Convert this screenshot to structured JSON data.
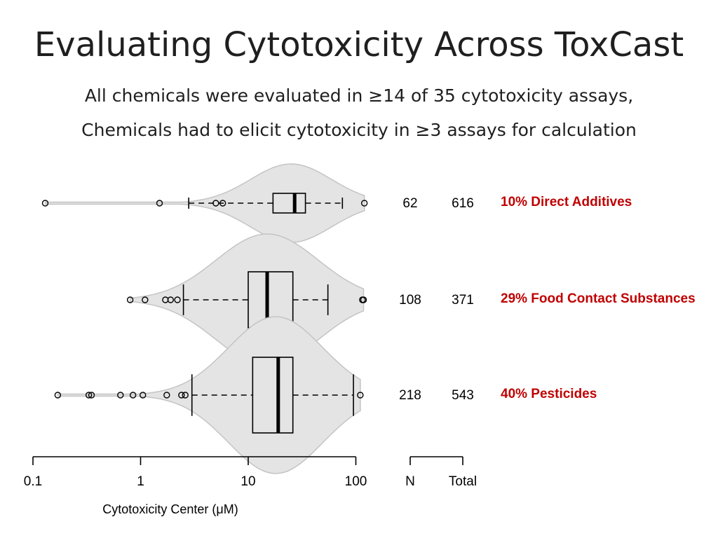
{
  "title": "Evaluating Cytotoxicity Across ToxCast",
  "subtitle_line1": "All chemicals were evaluated in ≥14 of 35 cytotoxicity assays,",
  "subtitle_line2": "Chemicals had to elicit cytotoxicity in ≥3 assays for calculation",
  "accent_color": "#c00000",
  "chart_data": {
    "type": "violin-box",
    "xlabel": "Cytotoxicity Center (μM)",
    "xscale": "log",
    "xlim": [
      0.1,
      100
    ],
    "xticks": [
      0.1,
      1,
      10,
      100
    ],
    "xtick_labels": [
      "0.1",
      "1",
      "10",
      "100"
    ],
    "count_columns": [
      "N",
      "Total"
    ],
    "groups": [
      {
        "label": "10% Direct Additives",
        "N": 62,
        "Total": 616,
        "whisker_low": 2.8,
        "q1": 17,
        "median": 27,
        "q3": 34,
        "whisker_high": 75,
        "outliers": [
          0.13,
          1.5,
          5.0,
          5.8,
          120
        ],
        "violin_center": 25
      },
      {
        "label": "29% Food Contact Substances",
        "N": 108,
        "Total": 371,
        "whisker_low": 2.5,
        "q1": 10,
        "median": 15,
        "q3": 26,
        "whisker_high": 55,
        "outliers": [
          0.8,
          1.1,
          1.7,
          1.9,
          2.2,
          115,
          118
        ],
        "violin_center": 15
      },
      {
        "label": "40% Pesticides",
        "N": 218,
        "Total": 543,
        "whisker_low": 3.0,
        "q1": 11,
        "median": 19,
        "q3": 26,
        "whisker_high": 95,
        "outliers": [
          0.17,
          0.33,
          0.35,
          0.65,
          0.85,
          1.05,
          1.75,
          2.4,
          2.6,
          110
        ],
        "violin_center": 18
      }
    ]
  }
}
